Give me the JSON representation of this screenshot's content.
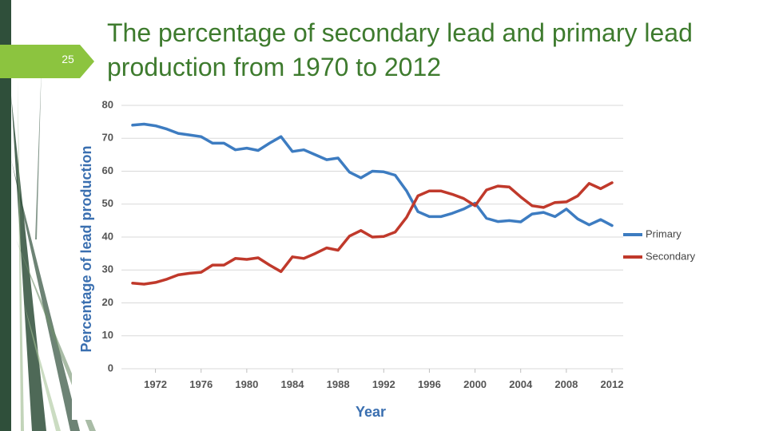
{
  "slide": {
    "page_number": "25",
    "title": "The percentage of secondary lead and primary lead production from 1970 to 2012",
    "accent_color": "#3e7b2e",
    "badge_color": "#8cc43f",
    "decor_dark": "#2f4f3a"
  },
  "chart_data": {
    "type": "line",
    "title": "",
    "xlabel": "Year",
    "ylabel": "Percentage of lead production",
    "xlim": [
      1970,
      2012
    ],
    "ylim": [
      0,
      80
    ],
    "yticks": [
      0,
      10,
      20,
      30,
      40,
      50,
      60,
      70,
      80
    ],
    "xticks": [
      1972,
      1976,
      1980,
      1984,
      1988,
      1992,
      1996,
      2000,
      2004,
      2008,
      2012
    ],
    "grid": true,
    "legend_position": "right",
    "x": [
      1970,
      1971,
      1972,
      1973,
      1974,
      1975,
      1976,
      1977,
      1978,
      1979,
      1980,
      1981,
      1982,
      1983,
      1984,
      1985,
      1986,
      1987,
      1988,
      1989,
      1990,
      1991,
      1992,
      1993,
      1994,
      1995,
      1996,
      1997,
      1998,
      1999,
      2000,
      2001,
      2002,
      2003,
      2004,
      2005,
      2006,
      2007,
      2008,
      2009,
      2010,
      2011,
      2012
    ],
    "series": [
      {
        "name": "Primary",
        "color": "#3d7cc1",
        "values": [
          74,
          74.3,
          73.8,
          72.8,
          71.5,
          71,
          70.5,
          68.5,
          68.5,
          66.5,
          67,
          66.3,
          68.5,
          70.5,
          66,
          66.5,
          65,
          63.5,
          64,
          59.7,
          58,
          60,
          59.8,
          58.8,
          54,
          47.7,
          46.2,
          46.2,
          47.2,
          48.5,
          50.3,
          45.7,
          44.7,
          45,
          44.6,
          47,
          47.5,
          46.2,
          48.5,
          45.5,
          43.7,
          45.3,
          43.5
        ]
      },
      {
        "name": "Secondary",
        "color": "#c0392b",
        "values": [
          26,
          25.7,
          26.2,
          27.2,
          28.5,
          29,
          29.3,
          31.5,
          31.5,
          33.5,
          33.2,
          33.7,
          31.5,
          29.5,
          34,
          33.5,
          35,
          36.7,
          36,
          40.3,
          42,
          40,
          40.2,
          41.5,
          46,
          52.5,
          54,
          54,
          53,
          51.7,
          49.5,
          54.3,
          55.5,
          55.2,
          52.2,
          49.5,
          49,
          50.5,
          50.7,
          52.5,
          56.3,
          54.7,
          56.5
        ]
      }
    ]
  }
}
